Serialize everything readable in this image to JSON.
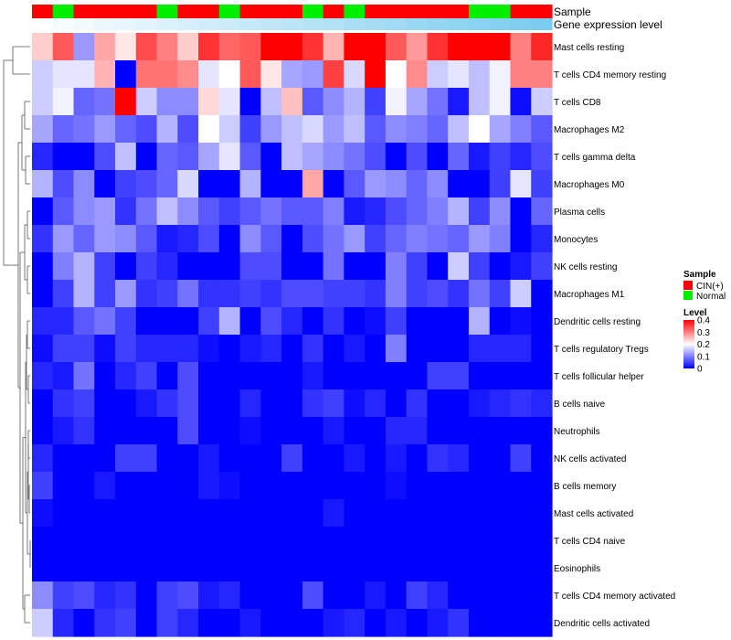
{
  "chart_data": {
    "type": "heatmap",
    "title": "",
    "annotation_rows": [
      "Sample",
      "Gene expression level"
    ],
    "rows": [
      "Mast cells resting",
      "T cells CD4 memory resting",
      "T cells CD8",
      "Macrophages M2",
      "T cells gamma delta",
      "Macrophages M0",
      "Plasma cells",
      "Monocytes",
      "NK cells resting",
      "Macrophages M1",
      "Dendritic cells resting",
      "T cells regulatory  Tregs",
      "T cells follicular helper",
      "B cells naive",
      "Neutrophils",
      "NK cells activated",
      "B cells memory",
      "Mast cells activated",
      "T cells CD4 naive",
      "Eosinophils",
      "T cells CD4 memory activated",
      "Dendritic cells activated"
    ],
    "sample_groups": [
      "CIN(+)",
      "Normal",
      "CIN(+)",
      "CIN(+)",
      "CIN(+)",
      "CIN(+)",
      "Normal",
      "CIN(+)",
      "CIN(+)",
      "Normal",
      "CIN(+)",
      "CIN(+)",
      "CIN(+)",
      "Normal",
      "CIN(+)",
      "Normal",
      "CIN(+)",
      "CIN(+)",
      "CIN(+)",
      "CIN(+)",
      "CIN(+)",
      "Normal",
      "Normal",
      "CIN(+)",
      "CIN(+)"
    ],
    "expression_level": [
      0.02,
      0.05,
      0.08,
      0.12,
      0.15,
      0.18,
      0.22,
      0.25,
      0.28,
      0.32,
      0.35,
      0.38,
      0.42,
      0.45,
      0.48,
      0.52,
      0.55,
      0.58,
      0.62,
      0.65,
      0.68,
      0.72,
      0.75,
      0.78,
      0.82
    ],
    "values": [
      [
        0.24,
        0.33,
        0.12,
        0.27,
        0.22,
        0.34,
        0.3,
        0.24,
        0.36,
        0.32,
        0.33,
        0.4,
        0.4,
        0.36,
        0.26,
        0.4,
        0.4,
        0.33,
        0.28,
        0.36,
        0.4,
        0.4,
        0.4,
        0.3,
        0.37
      ],
      [
        0.16,
        0.18,
        0.18,
        0.26,
        0.0,
        0.31,
        0.31,
        0.29,
        0.18,
        0.2,
        0.33,
        0.22,
        0.13,
        0.12,
        0.35,
        0.17,
        0.4,
        0.2,
        0.29,
        0.16,
        0.18,
        0.15,
        0.19,
        0.3,
        0.3
      ],
      [
        0.16,
        0.19,
        0.08,
        0.09,
        0.4,
        0.16,
        0.11,
        0.11,
        0.23,
        0.18,
        0.0,
        0.15,
        0.25,
        0.07,
        0.11,
        0.14,
        0.05,
        0.19,
        0.13,
        0.09,
        0.02,
        0.15,
        0.19,
        0.01,
        0.16
      ],
      [
        0.13,
        0.08,
        0.09,
        0.12,
        0.08,
        0.06,
        0.14,
        0.06,
        0.2,
        0.16,
        0.05,
        0.12,
        0.15,
        0.17,
        0.12,
        0.15,
        0.07,
        0.11,
        0.1,
        0.08,
        0.15,
        0.2,
        0.13,
        0.1,
        0.07
      ],
      [
        0.03,
        0.0,
        0.0,
        0.06,
        0.15,
        0.0,
        0.08,
        0.07,
        0.13,
        0.18,
        0.07,
        0.0,
        0.15,
        0.13,
        0.11,
        0.09,
        0.06,
        0.0,
        0.06,
        0.0,
        0.08,
        0.02,
        0.05,
        0.03,
        0.06
      ],
      [
        0.14,
        0.06,
        0.11,
        0.0,
        0.05,
        0.06,
        0.08,
        0.17,
        0.0,
        0.0,
        0.14,
        0.0,
        0.0,
        0.27,
        0.0,
        0.07,
        0.12,
        0.11,
        0.08,
        0.11,
        0.0,
        0.0,
        0.05,
        0.18,
        0.05
      ],
      [
        0.0,
        0.07,
        0.11,
        0.12,
        0.04,
        0.09,
        0.15,
        0.11,
        0.07,
        0.05,
        0.07,
        0.09,
        0.07,
        0.07,
        0.1,
        0.02,
        0.03,
        0.06,
        0.08,
        0.1,
        0.14,
        0.05,
        0.11,
        0.0,
        0.08
      ],
      [
        0.04,
        0.12,
        0.08,
        0.12,
        0.11,
        0.07,
        0.02,
        0.03,
        0.06,
        0.0,
        0.11,
        0.07,
        0.0,
        0.06,
        0.09,
        0.12,
        0.05,
        0.08,
        0.1,
        0.09,
        0.08,
        0.12,
        0.1,
        0.0,
        0.03
      ],
      [
        0.0,
        0.1,
        0.14,
        0.05,
        0.0,
        0.05,
        0.03,
        0.0,
        0.0,
        0.0,
        0.06,
        0.06,
        0.0,
        0.0,
        0.09,
        0.0,
        0.0,
        0.1,
        0.05,
        0.0,
        0.16,
        0.05,
        0.0,
        0.02,
        0.05
      ],
      [
        0.0,
        0.05,
        0.14,
        0.05,
        0.12,
        0.04,
        0.05,
        0.09,
        0.04,
        0.04,
        0.05,
        0.04,
        0.06,
        0.06,
        0.05,
        0.05,
        0.04,
        0.1,
        0.05,
        0.06,
        0.04,
        0.09,
        0.05,
        0.16,
        0.0
      ],
      [
        0.03,
        0.03,
        0.07,
        0.09,
        0.05,
        0.0,
        0.0,
        0.0,
        0.05,
        0.14,
        0.0,
        0.06,
        0.03,
        0.0,
        0.04,
        0.0,
        0.01,
        0.05,
        0.0,
        0.0,
        0.0,
        0.14,
        0.0,
        0.01,
        0.0
      ],
      [
        0.01,
        0.05,
        0.05,
        0.01,
        0.05,
        0.03,
        0.03,
        0.03,
        0.01,
        0.0,
        0.02,
        0.03,
        0.0,
        0.04,
        0.0,
        0.02,
        0.0,
        0.1,
        0.0,
        0.0,
        0.0,
        0.03,
        0.03,
        0.03,
        0.0
      ],
      [
        0.03,
        0.02,
        0.09,
        0.0,
        0.03,
        0.05,
        0.0,
        0.06,
        0.0,
        0.0,
        0.0,
        0.0,
        0.0,
        0.02,
        0.0,
        0.0,
        0.0,
        0.0,
        0.0,
        0.05,
        0.05,
        0.0,
        0.0,
        0.0,
        0.0
      ],
      [
        0.0,
        0.04,
        0.05,
        0.0,
        0.0,
        0.02,
        0.04,
        0.06,
        0.0,
        0.0,
        0.03,
        0.0,
        0.0,
        0.04,
        0.05,
        0.01,
        0.03,
        0.0,
        0.04,
        0.0,
        0.0,
        0.02,
        0.03,
        0.04,
        0.03
      ],
      [
        0.0,
        0.02,
        0.04,
        0.0,
        0.0,
        0.0,
        0.0,
        0.06,
        0.0,
        0.0,
        0.01,
        0.0,
        0.0,
        0.0,
        0.02,
        0.0,
        0.0,
        0.03,
        0.03,
        0.0,
        0.0,
        0.0,
        0.0,
        0.0,
        0.0
      ],
      [
        0.03,
        0.0,
        0.0,
        0.0,
        0.05,
        0.05,
        0.0,
        0.0,
        0.02,
        0.0,
        0.0,
        0.0,
        0.05,
        0.0,
        0.0,
        0.02,
        0.0,
        0.02,
        0.0,
        0.04,
        0.03,
        0.0,
        0.0,
        0.05,
        0.0
      ],
      [
        0.05,
        0.0,
        0.0,
        0.02,
        0.0,
        0.0,
        0.0,
        0.0,
        0.02,
        0.01,
        0.0,
        0.0,
        0.0,
        0.0,
        0.0,
        0.0,
        0.0,
        0.01,
        0.0,
        0.0,
        0.0,
        0.0,
        0.0,
        0.0,
        0.0
      ],
      [
        0.01,
        0.0,
        0.0,
        0.0,
        0.0,
        0.0,
        0.0,
        0.0,
        0.0,
        0.0,
        0.0,
        0.0,
        0.0,
        0.0,
        0.02,
        0.0,
        0.0,
        0.0,
        0.0,
        0.0,
        0.0,
        0.0,
        0.0,
        0.0,
        0.0
      ],
      [
        0.0,
        0.0,
        0.0,
        0.0,
        0.0,
        0.0,
        0.0,
        0.0,
        0.0,
        0.0,
        0.0,
        0.0,
        0.0,
        0.0,
        0.0,
        0.0,
        0.0,
        0.0,
        0.0,
        0.0,
        0.0,
        0.0,
        0.0,
        0.0,
        0.0
      ],
      [
        0.0,
        0.0,
        0.0,
        0.0,
        0.0,
        0.0,
        0.0,
        0.0,
        0.0,
        0.0,
        0.0,
        0.0,
        0.0,
        0.0,
        0.0,
        0.0,
        0.0,
        0.0,
        0.0,
        0.0,
        0.0,
        0.0,
        0.0,
        0.0,
        0.0
      ],
      [
        0.11,
        0.05,
        0.06,
        0.03,
        0.04,
        0.0,
        0.05,
        0.06,
        0.02,
        0.03,
        0.0,
        0.0,
        0.0,
        0.06,
        0.0,
        0.0,
        0.02,
        0.0,
        0.05,
        0.03,
        0.0,
        0.0,
        0.0,
        0.0,
        0.0
      ],
      [
        0.16,
        0.03,
        0.0,
        0.04,
        0.05,
        0.0,
        0.05,
        0.03,
        0.0,
        0.0,
        0.02,
        0.0,
        0.0,
        0.0,
        0.02,
        0.03,
        0.0,
        0.02,
        0.0,
        0.02,
        0.04,
        0.0,
        0.0,
        0.0,
        0.0
      ]
    ],
    "value_range": [
      0,
      0.4
    ],
    "legend": {
      "sample_title": "Sample",
      "sample_items": [
        {
          "label": "CIN(+)",
          "color": "#ff0000"
        },
        {
          "label": "Normal",
          "color": "#00ee00"
        }
      ],
      "level_title": "Level",
      "level_ticks": [
        "0.4",
        "0.3",
        "0.2",
        "0.1",
        "0"
      ],
      "level_tick_values": [
        0.4,
        0.3,
        0.2,
        0.1,
        0.0
      ]
    },
    "colors": {
      "low": "#0000ff",
      "mid": "#ffffff",
      "high": "#ff0000",
      "expr_low": "#ffffff",
      "expr_high": "#5bc0eb",
      "dendrogram": "#555555"
    }
  }
}
